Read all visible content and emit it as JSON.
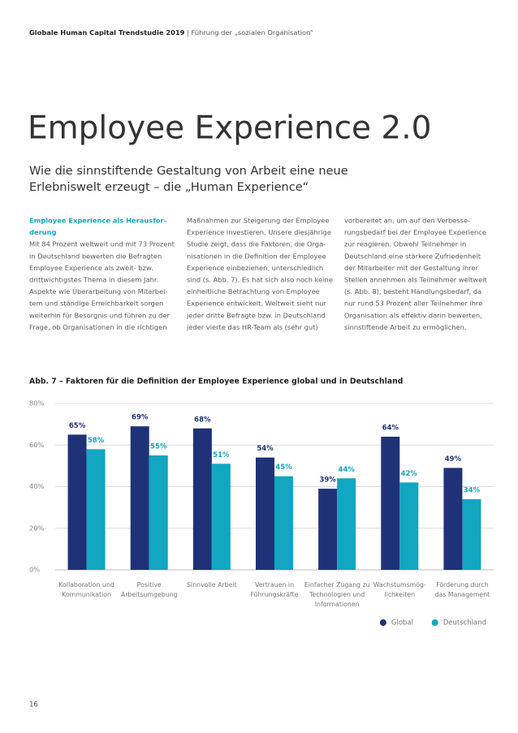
{
  "header": {
    "bold": "Globale Human Capital Trendstudie 2019",
    "rest": " | Führung der „sozialen Organisation“"
  },
  "title": "Employee Experience 2.0",
  "subtitle": [
    "Wie die sinnstiftende Gestaltung von Arbeit eine neue",
    "Erlebniswelt erzeugt – die „Human Experience“"
  ],
  "columns": [
    {
      "heading": [
        "Employee Experience als Herausfor-",
        "derung"
      ],
      "lines": [
        "Mit 84 Prozent weltweit und mit 73 Prozent",
        "in Deutschland bewerten die Befragten",
        "Employee Experience als zweit- bzw.",
        "drittwichtigstes Thema in diesem Jahr.",
        "Aspekte wie Überarbeitung von Mitarbei-",
        "tern und ständige Erreichbarkeit sorgen",
        "weiterhin für Besorgnis und führen zu der",
        "Frage, ob Organisationen in die richtigen"
      ]
    },
    {
      "lines": [
        "Maßnahmen zur Steigerung der Employee",
        "Experience investieren. Unsere diesjährige",
        "Studie zeigt, dass die Faktoren, die Orga-",
        "nisationen in die Definition der Employee",
        "Experience einbeziehen, unterschiedlich",
        "sind (s. Abb. 7). Es hat sich also noch keine",
        "einheitliche Betrachtung von Employee",
        "Experience entwickelt. Weltweit sieht nur",
        "jeder dritte Befragte bzw. in Deutschland",
        "jeder vierte das HR-Team als (sehr gut)"
      ]
    },
    {
      "lines": [
        "vorbereitet an, um auf den Verbesse-",
        "rungsbedarf bei der Employee Experience",
        "zur reagieren. Obwohl Teilnehmer in",
        "Deutschland eine stärkere Zufriedenheit",
        "der Mitarbeiter mit der Gestaltung ihrer",
        "Stellen annehmen als Teilnehmer weltweit",
        "(s. Abb. 8), besteht Handlungsbedarf, da",
        "nur rund 53 Prozent aller Teilnehmer ihre",
        "Organisation als effektiv darin bewerten,",
        "sinnstiftende Arbeit zu ermöglichen."
      ]
    }
  ],
  "chart_data": {
    "type": "bar",
    "title": "Abb. 7 – Faktoren für die Definition der Employee Experience global und in Deutschland",
    "categories": [
      [
        "Kollaboration und",
        "Kommunikation"
      ],
      [
        "Positive",
        "Arbeitsumgebung"
      ],
      [
        "Sinnvolle Arbeit"
      ],
      [
        "Vertrauen in",
        "Führungskräfte"
      ],
      [
        "Einfacher Zugang zu",
        "Technologien und",
        "Informationen"
      ],
      [
        "Wachstumsmög-",
        "lichkeiten"
      ],
      [
        "Förderung durch",
        "das Management"
      ]
    ],
    "series": [
      {
        "name": "Global",
        "color": "#1f3278",
        "values": [
          65,
          69,
          68,
          54,
          39,
          64,
          49
        ],
        "value_labels": [
          "65%",
          "69%",
          "68%",
          "54%",
          "39%",
          "64%",
          "49%"
        ]
      },
      {
        "name": "Deutschland",
        "color": "#12a6c0",
        "values": [
          58,
          55,
          51,
          45,
          44,
          42,
          34
        ],
        "value_labels": [
          "58%",
          "55%",
          "51%",
          "45%",
          "44%",
          "42%",
          "34%"
        ]
      }
    ],
    "ylim": [
      0,
      80
    ],
    "yticks": [
      {
        "value": 0,
        "label": "0%"
      },
      {
        "value": 20,
        "label": "20%"
      },
      {
        "value": 40,
        "label": "40%"
      },
      {
        "value": 60,
        "label": "60%"
      },
      {
        "value": 80,
        "label": "80%"
      }
    ],
    "grid": true,
    "legend": "bottom-right"
  },
  "page_number": "16"
}
